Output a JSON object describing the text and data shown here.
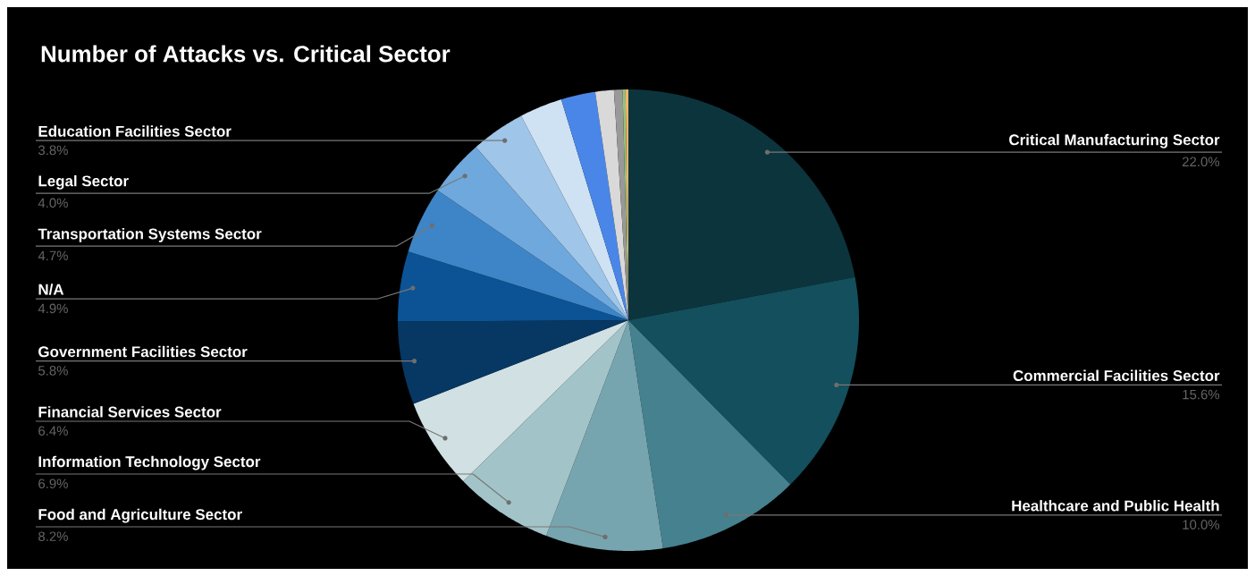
{
  "chart_data": {
    "type": "pie",
    "title": "Number of Attacks vs. Critical Sector",
    "categories": [
      "Critical Manufacturing Sector",
      "Commercial Facilities Sector",
      "Healthcare and Public Health",
      "Food and Agriculture Sector",
      "Information Technology Sector",
      "Financial Services Sector",
      "Government Facilities Sector",
      "N/A",
      "Transportation Systems Sector",
      "Legal Sector",
      "Education Facilities Sector",
      null,
      null,
      null,
      null,
      null,
      null
    ],
    "values": [
      22.0,
      15.6,
      10.0,
      8.2,
      6.9,
      6.4,
      5.8,
      4.9,
      4.7,
      4.0,
      3.8,
      3.0,
      2.4,
      1.3,
      0.6,
      0.2,
      0.2
    ],
    "value_labels": [
      "22.0%",
      "15.6%",
      "10.0%",
      "8.2%",
      "6.9%",
      "6.4%",
      "5.8%",
      "4.9%",
      "4.7%",
      "4.0%",
      "3.8%",
      null,
      null,
      null,
      null,
      null,
      null
    ],
    "colors": [
      "#0c343d",
      "#134f5c",
      "#45818e",
      "#76a5af",
      "#a2c4c9",
      "#d0e0e3",
      "#073763",
      "#0b5394",
      "#3d85c6",
      "#6fa8dc",
      "#9fc5e8",
      "#cfe2f3",
      "#4a86e8",
      "#d9d9d9",
      "#999999",
      "#93c47d",
      "#f6b26b"
    ]
  }
}
